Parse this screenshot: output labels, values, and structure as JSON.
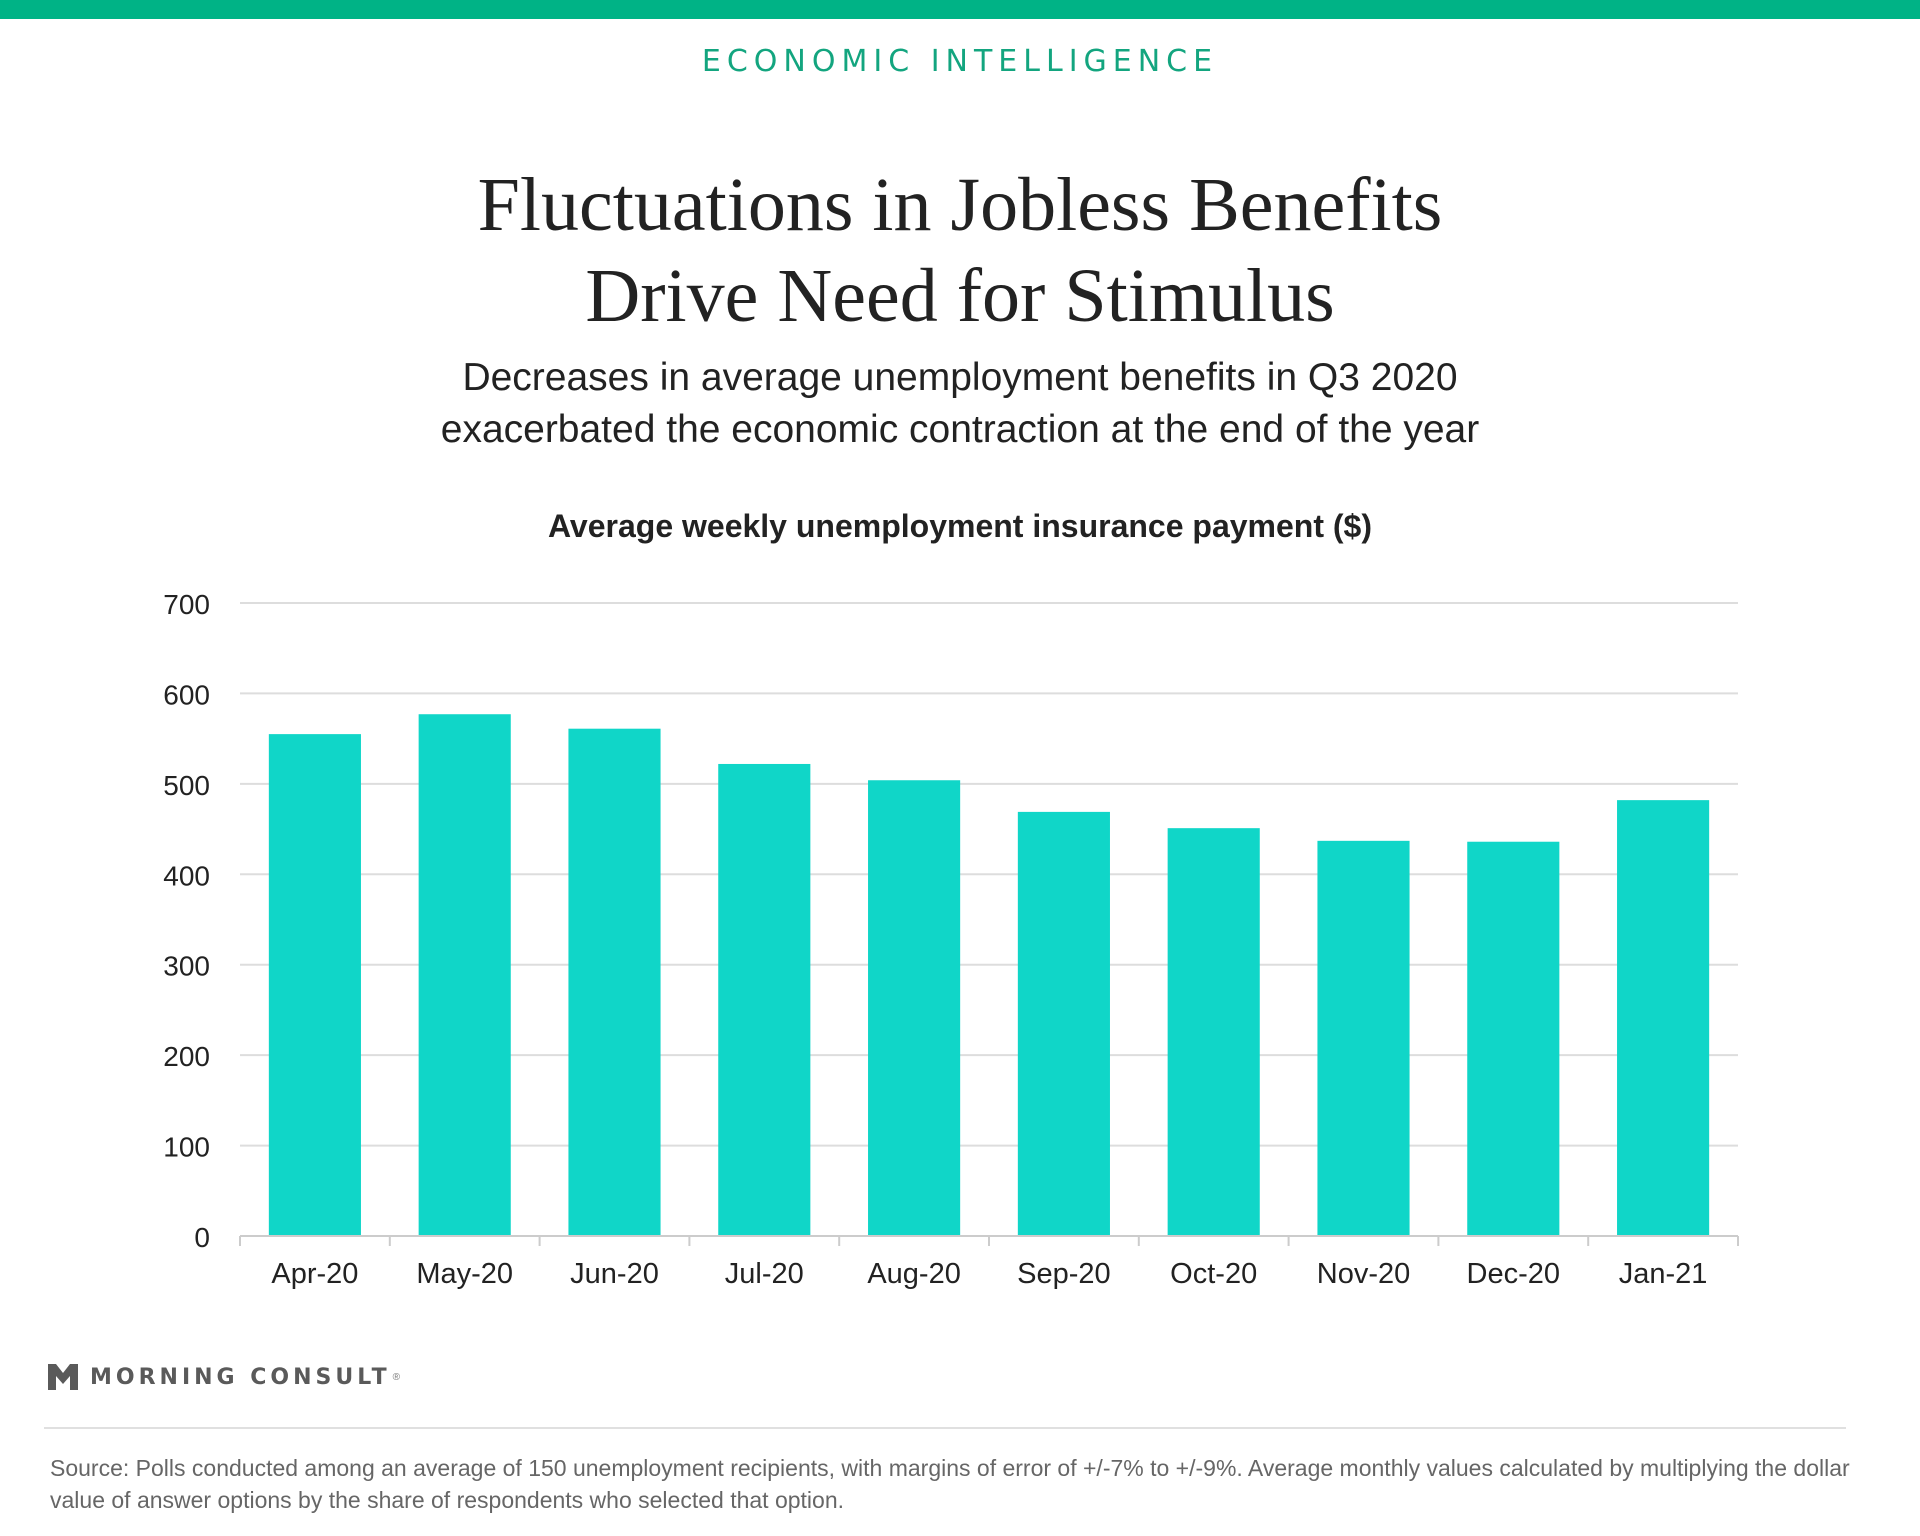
{
  "header": {
    "kicker": "ECONOMIC INTELLIGENCE",
    "title_lines": [
      "Fluctuations in Jobless Benefits",
      "Drive Need for Stimulus"
    ],
    "subtitle_lines": [
      "Decreases in average unemployment benefits in Q3 2020",
      "exacerbated the economic contraction at the end of the year"
    ]
  },
  "colors": {
    "accent": "#00b386",
    "bar": "#10d6c8",
    "gridline": "#dddddd",
    "axis_text": "#222222"
  },
  "chart_data": {
    "type": "bar",
    "title": "Average weekly unemployment insurance payment ($)",
    "xlabel": "",
    "ylabel": "",
    "categories": [
      "Apr-20",
      "May-20",
      "Jun-20",
      "Jul-20",
      "Aug-20",
      "Sep-20",
      "Oct-20",
      "Nov-20",
      "Dec-20",
      "Jan-21"
    ],
    "values": [
      555,
      577,
      561,
      522,
      504,
      469,
      451,
      437,
      436,
      482
    ],
    "ylim": [
      0,
      700
    ],
    "yticks": [
      0,
      100,
      200,
      300,
      400,
      500,
      600,
      700
    ],
    "grid": true,
    "legend": "none"
  },
  "footer": {
    "brand": "MORNING CONSULT",
    "brand_mark": "registered",
    "logo_icon": "morning-consult-m-icon",
    "source_text": "Source: Polls conducted among an average of 150 unemployment recipients, with margins of error of +/-7% to +/-9%. Average monthly values calculated by multiplying the dollar value of answer options by the share of respondents who selected that option."
  }
}
